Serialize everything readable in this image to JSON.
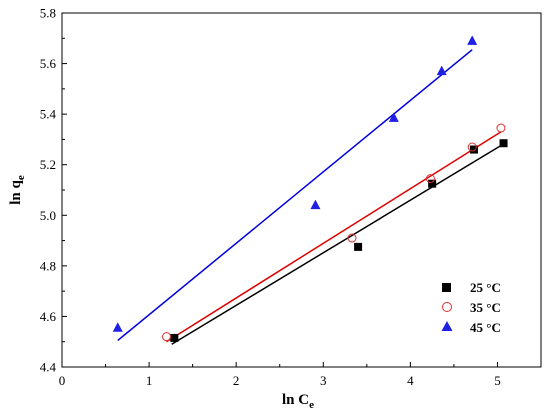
{
  "chart_data": {
    "type": "scatter",
    "xlabel": "ln C",
    "xlabel_sub": "e",
    "ylabel": "ln q",
    "ylabel_sub": "e",
    "xlim": [
      0,
      5.5
    ],
    "ylim": [
      4.4,
      5.8
    ],
    "xticks": [
      0,
      1,
      2,
      3,
      4,
      5
    ],
    "yticks": [
      4.4,
      4.6,
      4.8,
      5.0,
      5.2,
      5.4,
      5.6,
      5.8
    ],
    "xtick_labels": [
      "0",
      "1",
      "2",
      "3",
      "4",
      "5"
    ],
    "ytick_labels": [
      "4.4",
      "4.6",
      "4.8",
      "5.0",
      "5.2",
      "5.4",
      "5.6",
      "5.8"
    ],
    "grid": false,
    "legend_position": "lower-right",
    "series": [
      {
        "name": "25 °C",
        "marker": "square",
        "marker_color": "#000000",
        "filled": true,
        "line_color": "#000000",
        "points": [
          [
            1.29,
            4.515
          ],
          [
            3.4,
            4.875
          ],
          [
            4.25,
            5.125
          ],
          [
            4.73,
            5.26
          ],
          [
            5.07,
            5.285
          ]
        ],
        "fit": [
          [
            1.26,
            4.49
          ],
          [
            5.06,
            5.28
          ]
        ]
      },
      {
        "name": "35 °C",
        "marker": "circle",
        "marker_color": "#e03030",
        "filled": false,
        "line_color": "#e00000",
        "points": [
          [
            1.2,
            4.52
          ],
          [
            3.33,
            4.91
          ],
          [
            4.23,
            5.145
          ],
          [
            4.71,
            5.27
          ],
          [
            5.04,
            5.345
          ]
        ],
        "fit": [
          [
            1.2,
            4.5
          ],
          [
            5.04,
            5.33
          ]
        ]
      },
      {
        "name": "45 °C",
        "marker": "triangle",
        "marker_color": "#1f1fe6",
        "filled": true,
        "line_color": "#0000e0",
        "points": [
          [
            0.64,
            4.555
          ],
          [
            2.91,
            5.04
          ],
          [
            3.81,
            5.385
          ],
          [
            4.36,
            5.57
          ],
          [
            4.71,
            5.69
          ]
        ],
        "fit": [
          [
            0.64,
            4.505
          ],
          [
            4.71,
            5.655
          ]
        ]
      }
    ]
  }
}
